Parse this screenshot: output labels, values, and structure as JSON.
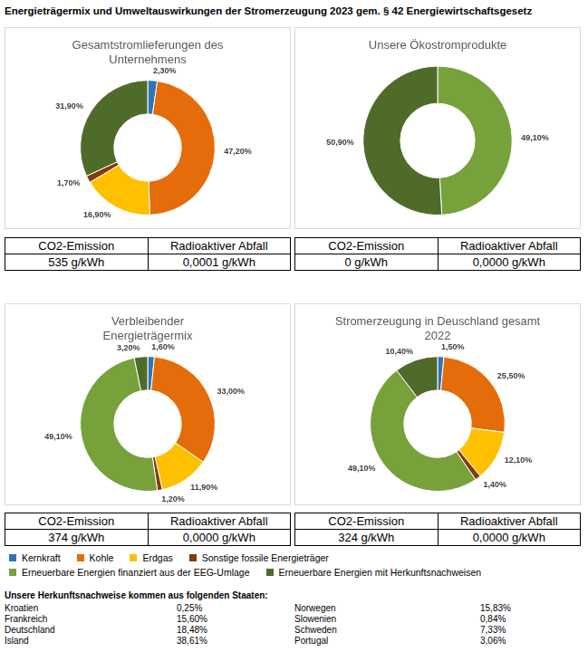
{
  "title": "Energieträgermix und Umweltauswirkungen der Stromerzeugung 2023 gem. § 42 Energiewirtschaftsgesetz",
  "chart_data": [
    {
      "type": "doughnut",
      "title": [
        "Gesamtstromlieferungen des",
        "Unternehmens"
      ],
      "categories": [
        "Kernkraft",
        "Kohle",
        "Erdgas",
        "Sonstige fossile Energieträger",
        "Erneuerbare Energien mit Herkunftsnachweisen"
      ],
      "values": [
        2.3,
        47.2,
        16.9,
        1.7,
        31.9
      ],
      "value_labels": [
        "2,30%",
        "47,20%",
        "16,90%",
        "1,70%",
        "31,90%"
      ],
      "colors": [
        "#2e75b6",
        "#e46c0a",
        "#ffc000",
        "#843c0c",
        "#4e6b2a"
      ],
      "data_labels": true
    },
    {
      "type": "doughnut",
      "title": [
        "Unsere Ökostromprodukte"
      ],
      "categories": [
        "Erneuerbare Energien finanziert aus der EEG-Umlage",
        "Erneuerbare Energien mit Herkunftsnachweisen"
      ],
      "values": [
        49.1,
        50.9
      ],
      "value_labels": [
        "49,10%",
        "50,90%"
      ],
      "colors": [
        "#77a13b",
        "#4e6b2a"
      ],
      "data_labels": true
    },
    {
      "type": "doughnut",
      "title": [
        "Verbleibender",
        "Energieträgermix"
      ],
      "categories": [
        "Kernkraft",
        "Kohle",
        "Erdgas",
        "Sonstige fossile Energieträger",
        "Erneuerbare Energien finanziert aus der EEG-Umlage",
        "Erneuerbare Energien mit Herkunftsnachweisen"
      ],
      "values": [
        1.6,
        33.0,
        11.9,
        1.2,
        49.1,
        3.2
      ],
      "value_labels": [
        "1,60%",
        "33,00%",
        "11,90%",
        "1,20%",
        "49,10%",
        "3,20%"
      ],
      "colors": [
        "#2e75b6",
        "#e46c0a",
        "#ffc000",
        "#843c0c",
        "#77a13b",
        "#4e6b2a"
      ],
      "data_labels": true
    },
    {
      "type": "doughnut",
      "title": [
        "Stromerzeugung in Deuschland gesamt",
        "2022"
      ],
      "categories": [
        "Kernkraft",
        "Kohle",
        "Erdgas",
        "Sonstige fossile Energieträger",
        "Erneuerbare Energien finanziert aus der EEG-Umlage",
        "Erneuerbare Energien mit Herkunftsnachweisen"
      ],
      "values": [
        1.5,
        25.5,
        12.1,
        1.4,
        49.1,
        10.4
      ],
      "value_labels": [
        "1,50%",
        "25,50%",
        "12,10%",
        "1,40%",
        "49,10%",
        "10,40%"
      ],
      "colors": [
        "#2e75b6",
        "#e46c0a",
        "#ffc000",
        "#843c0c",
        "#77a13b",
        "#4e6b2a"
      ],
      "data_labels": true
    }
  ],
  "tables": [
    {
      "header": [
        "CO2-Emission",
        "Radioaktiver Abfall"
      ],
      "row": [
        "535 g/kWh",
        "0,0001 g/kWh"
      ]
    },
    {
      "header": [
        "CO2-Emission",
        "Radioaktiver Abfall"
      ],
      "row": [
        "0 g/kWh",
        "0,0000 g/kWh"
      ]
    },
    {
      "header": [
        "CO2-Emission",
        "Radioaktiver Abfall"
      ],
      "row": [
        "374 g/kWh",
        "0,0000 g/kWh"
      ]
    },
    {
      "header": [
        "CO2-Emission",
        "Radioaktiver Abfall"
      ],
      "row": [
        "324 g/kWh",
        "0,0000 g/kWh"
      ]
    }
  ],
  "legend_items": [
    {
      "name": "Kernkraft",
      "color": "#2e75b6"
    },
    {
      "name": "Kohle",
      "color": "#e46c0a"
    },
    {
      "name": "Erdgas",
      "color": "#ffc000"
    },
    {
      "name": "Sonstige fossile Energieträger",
      "color": "#843c0c"
    },
    {
      "name": "Erneuerbare Energien finanziert aus der EEG-Umlage",
      "color": "#77a13b"
    },
    {
      "name": "Erneuerbare Energien mit Herkunftsnachweisen",
      "color": "#4e6b2a"
    }
  ],
  "origin": {
    "heading": "Unsere Herkunftsnachweise kommen aus folgenden Staaten:",
    "rows": [
      [
        "Kroatien",
        "0,25%",
        "Norwegen",
        "15,83%"
      ],
      [
        "Frankreich",
        "15,60%",
        "Slowenien",
        "0,84%"
      ],
      [
        "Deutschland",
        "18,48%",
        "Schweden",
        "7,33%"
      ],
      [
        "Island",
        "38,61%",
        "Portugal",
        "3,06%"
      ]
    ]
  }
}
